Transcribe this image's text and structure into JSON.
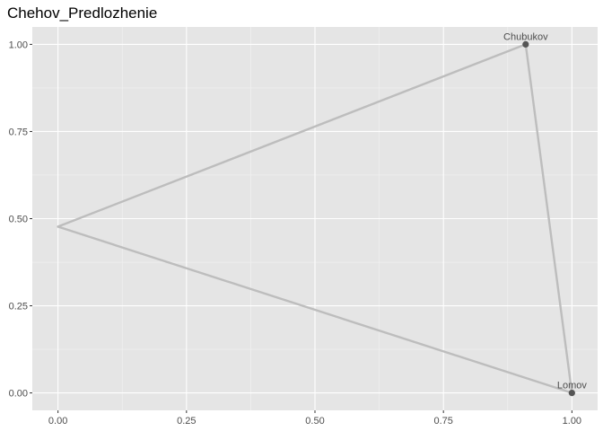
{
  "chart_data": {
    "type": "scatter",
    "title": "Chehov_Predlozhenie",
    "xlabel": "",
    "ylabel": "",
    "xlim": [
      -0.05,
      1.05
    ],
    "ylim": [
      -0.05,
      1.05
    ],
    "x_ticks": [
      0.0,
      0.25,
      0.5,
      0.75,
      1.0
    ],
    "x_tick_labels": [
      "0.00",
      "0.25",
      "0.50",
      "0.75",
      "1.00"
    ],
    "y_ticks": [
      0.0,
      0.25,
      0.5,
      0.75,
      1.0
    ],
    "y_tick_labels": [
      "0.00",
      "0.25",
      "0.50",
      "0.75",
      "1.00"
    ],
    "grid": true,
    "points": [
      {
        "label": "Chubukov",
        "x": 0.91,
        "y": 1.0,
        "show_marker": true
      },
      {
        "label": "",
        "x": 0.0,
        "y": 0.477,
        "show_marker": false
      },
      {
        "label": "Lomov",
        "x": 1.0,
        "y": 0.0,
        "show_marker": true
      }
    ],
    "edges": [
      [
        0,
        2
      ],
      [
        2,
        1
      ],
      [
        1,
        0
      ]
    ],
    "colors": {
      "panel_bg": "#e5e5e5",
      "grid_major": "#ffffff",
      "grid_minor": "#f2f2f2",
      "edge": "#bdbdbd",
      "point": "#555555"
    }
  }
}
